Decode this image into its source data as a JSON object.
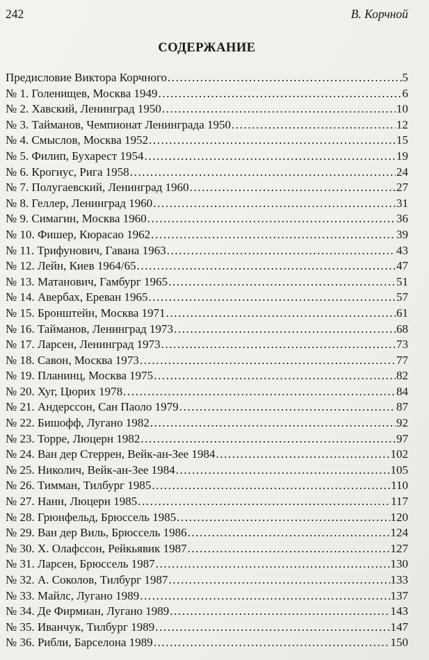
{
  "header": {
    "page_number": "242",
    "author": "В. Корчной"
  },
  "title": "СОДЕРЖАНИЕ",
  "toc": {
    "entries": [
      {
        "label": "Предисловие Виктора Корчного",
        "page": "5"
      },
      {
        "label": "№ 1. Голенищев, Москва 1949",
        "page": "6"
      },
      {
        "label": "№ 2. Хавский, Ленинград 1950",
        "page": "10"
      },
      {
        "label": "№ 3. Тайманов, Чемпионат Ленинграда 1950",
        "page": "12"
      },
      {
        "label": "№ 4. Смыслов, Москва 1952",
        "page": "15"
      },
      {
        "label": "№ 5. Филип, Бухарест 1954",
        "page": "19"
      },
      {
        "label": "№ 6. Крогиус, Рига 1958",
        "page": "24"
      },
      {
        "label": "№ 7. Полугаевский, Ленинград 1960",
        "page": "27"
      },
      {
        "label": "№ 8. Геллер, Ленинград 1960",
        "page": "31"
      },
      {
        "label": "№ 9. Симагин, Москва 1960",
        "page": "36"
      },
      {
        "label": "№ 10. Фишер, Кюрасао 1962",
        "page": "39"
      },
      {
        "label": "№ 11. Трифунович, Гавана 1963",
        "page": "43"
      },
      {
        "label": "№ 12. Лейн, Киев 1964/65",
        "page": "47"
      },
      {
        "label": "№ 13. Матанович, Гамбург 1965",
        "page": "51"
      },
      {
        "label": "№ 14. Авербах, Ереван 1965",
        "page": "57"
      },
      {
        "label": "№ 15. Бронштейн, Москва 1971",
        "page": "61"
      },
      {
        "label": "№ 16. Тайманов, Ленинград 1973",
        "page": "68"
      },
      {
        "label": "№ 17. Ларсен, Ленинград 1973",
        "page": "73"
      },
      {
        "label": "№ 18. Савон, Москва 1973",
        "page": "77"
      },
      {
        "label": "№ 19. Планинц, Москва 1975",
        "page": "82"
      },
      {
        "label": "№ 20. Хуг, Цюрих 1978",
        "page": "84"
      },
      {
        "label": "№ 21. Андерссон, Сан Паоло 1979",
        "page": "87"
      },
      {
        "label": "№ 22. Бишофф, Лугано 1982",
        "page": "92"
      },
      {
        "label": "№ 23. Торре, Люцерн 1982",
        "page": "97"
      },
      {
        "label": "№ 24. Ван дер Стеррен, Вейк-ан-Зее 1984",
        "page": "102"
      },
      {
        "label": "№ 25. Николич, Вейк-ан-Зее 1984",
        "page": "105"
      },
      {
        "label": "№ 26. Тимман, Тилбург 1985",
        "page": "110"
      },
      {
        "label": "№ 27. Нанн, Люцерн 1985",
        "page": "117"
      },
      {
        "label": "№ 28. Грюнфельд, Брюссель 1985",
        "page": "120"
      },
      {
        "label": "№ 29. Ван дер Виль, Брюссель 1986",
        "page": "124"
      },
      {
        "label": "№ 30. Х. Олафссон, Рейкьявик 1987",
        "page": "127"
      },
      {
        "label": "№ 31. Ларсен, Брюссель 1987",
        "page": "130"
      },
      {
        "label": "№ 32. А. Соколов, Тилбург 1987",
        "page": "133"
      },
      {
        "label": "№ 33. Майлс, Лугано 1989",
        "page": "137"
      },
      {
        "label": "№ 34. Де Фирмиан, Лугано 1989",
        "page": "143"
      },
      {
        "label": "№ 35. Иванчук, Тилбург 1989",
        "page": "147"
      },
      {
        "label": "№ 36. Рибли, Барселона 1989",
        "page": "150"
      }
    ]
  }
}
